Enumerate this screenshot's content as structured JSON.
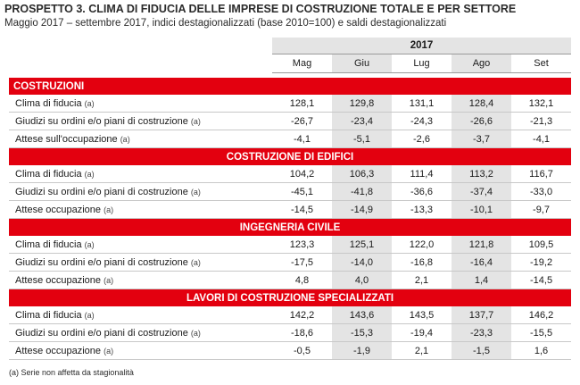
{
  "title": "PROSPETTO 3. CLIMA DI FIDUCIA DELLE IMPRESE DI COSTRUZIONE TOTALE E PER SETTORE",
  "subtitle": "Maggio 2017 – settembre 2017, indici destagionalizzati (base 2010=100) e saldi destagionalizzati",
  "year": "2017",
  "months": [
    "Mag",
    "Giu",
    "Lug",
    "Ago",
    "Set"
  ],
  "sections": [
    {
      "name": "COSTRUZIONI",
      "rows": [
        {
          "label": "Clima di fiducia",
          "note": "(a)",
          "values": [
            "128,1",
            "129,8",
            "131,1",
            "128,4",
            "132,1"
          ]
        },
        {
          "label": "Giudizi su ordini e/o piani di costruzione",
          "note": "(a)",
          "values": [
            "-26,7",
            "-23,4",
            "-24,3",
            "-26,6",
            "-21,3"
          ]
        },
        {
          "label": "Attese sull'occupazione",
          "note": "(a)",
          "values": [
            "-4,1",
            "-5,1",
            "-2,6",
            "-3,7",
            "-4,1"
          ]
        }
      ]
    },
    {
      "name": "COSTRUZIONE DI EDIFICI",
      "rows": [
        {
          "label": "Clima di fiducia",
          "note": "(a)",
          "values": [
            "104,2",
            "106,3",
            "111,4",
            "113,2",
            "116,7"
          ]
        },
        {
          "label": "Giudizi su ordini e/o piani di costruzione",
          "note": "(a)",
          "values": [
            "-45,1",
            "-41,8",
            "-36,6",
            "-37,4",
            "-33,0"
          ]
        },
        {
          "label": "Attese occupazione",
          "note": "(a)",
          "values": [
            "-14,5",
            "-14,9",
            "-13,3",
            "-10,1",
            "-9,7"
          ]
        }
      ]
    },
    {
      "name": "INGEGNERIA CIVILE",
      "rows": [
        {
          "label": "Clima di fiducia",
          "note": "(a)",
          "values": [
            "123,3",
            "125,1",
            "122,0",
            "121,8",
            "109,5"
          ]
        },
        {
          "label": "Giudizi su ordini e/o piani di costruzione",
          "note": "(a)",
          "values": [
            "-17,5",
            "-14,0",
            "-16,8",
            "-16,4",
            "-19,2"
          ]
        },
        {
          "label": "Attese occupazione",
          "note": "(a)",
          "values": [
            "4,8",
            "4,0",
            "2,1",
            "1,4",
            "-14,5"
          ]
        }
      ]
    },
    {
      "name": "LAVORI DI COSTRUZIONE SPECIALIZZATI",
      "rows": [
        {
          "label": "Clima di fiducia",
          "note": "(a)",
          "values": [
            "142,2",
            "143,6",
            "143,5",
            "137,7",
            "146,2"
          ]
        },
        {
          "label": "Giudizi su ordini e/o piani di costruzione",
          "note": "(a)",
          "values": [
            "-18,6",
            "-15,3",
            "-19,4",
            "-23,3",
            "-15,5"
          ]
        },
        {
          "label": "Attese occupazione",
          "note": "(a)",
          "values": [
            "-0,5",
            "-1,9",
            "2,1",
            "-1,5",
            "1,6"
          ]
        }
      ]
    }
  ],
  "footnote": "(a) Serie non affetta da stagionalità",
  "colors": {
    "section_band": "#e3000f",
    "shaded_column": "#e4e4e4"
  }
}
